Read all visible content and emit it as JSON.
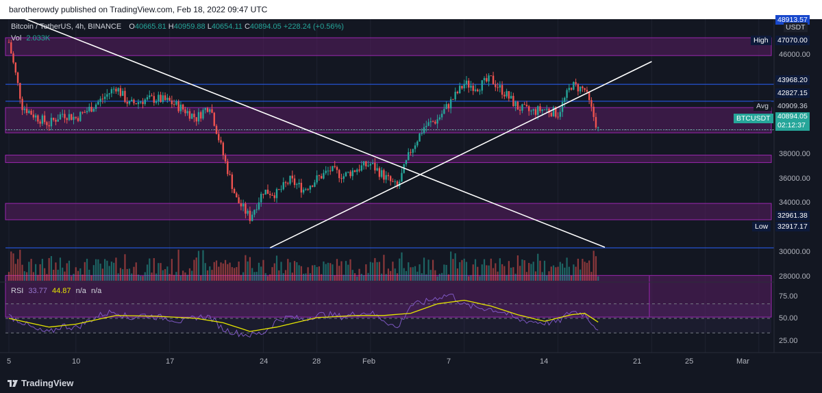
{
  "header": {
    "publisher_text": "barotherowdy published on TradingView.com, Feb 18, 2022 09:47 UTC"
  },
  "footer": {
    "logo_text": "TradingView"
  },
  "legend": {
    "symbol": "Bitcoin / TetherUS, 4h, BINANCE",
    "open_label": "O",
    "open": "40665.81",
    "high_label": "H",
    "high": "40959.88",
    "low_label": "L",
    "low": "40654.11",
    "close_label": "C",
    "close": "40894.05",
    "change": "+228.24 (+0.56%)",
    "vol_label": "Vol",
    "vol": "2.033K",
    "rsi_label": "RSI",
    "rsi_value": "33.77",
    "rsi_ma": "44.87",
    "rsi_na1": "n/a",
    "rsi_na2": "n/a"
  },
  "price_axis": {
    "currency": "USDT",
    "top_cut": "48913.57",
    "ticks": [
      "46000.00",
      "38000.00",
      "36000.00",
      "34000.00",
      "30000.00",
      "28000.00"
    ],
    "labels": {
      "high_tag": "High",
      "high": "47070.00",
      "l1": "43968.20",
      "l2": "42827.15",
      "avg_tag": "Avg",
      "avg": "40909.36",
      "sym_tag": "BTCUSDT",
      "last": "40894.05",
      "countdown": "02:12:37",
      "l3": "32961.38",
      "low_tag": "Low",
      "low": "32917.17"
    }
  },
  "rsi_axis": {
    "ticks": [
      "75.00",
      "50.00",
      "25.00"
    ]
  },
  "time_axis": {
    "ticks": [
      "5",
      "10",
      "17",
      "24",
      "28",
      "Feb",
      "7",
      "14",
      "21",
      "25",
      "Mar"
    ]
  },
  "colors": {
    "background": "#131722",
    "up": "#26a69a",
    "down": "#ef5350",
    "zone_fill": "#5a1e63",
    "zone_border": "#9c27b0",
    "trendline": "#ffffff",
    "rsi_line": "#7e57c2",
    "rsi_ma_line": "#e6e600",
    "blue_level": "#2962ff"
  },
  "chart_data": {
    "type": "candlestick",
    "symbol": "BTCUSDT",
    "interval": "4h",
    "ylim": [
      28000,
      48913.57
    ],
    "rsi_ylim": [
      0,
      100
    ],
    "close_path": [
      [
        5,
        46800
      ],
      [
        6,
        42500
      ],
      [
        7,
        41800
      ],
      [
        8,
        41300
      ],
      [
        9,
        42000
      ],
      [
        10,
        41700
      ],
      [
        11,
        42300
      ],
      [
        12,
        43000
      ],
      [
        13,
        43800
      ],
      [
        14,
        42600
      ],
      [
        15,
        42900
      ],
      [
        16,
        43000
      ],
      [
        17,
        42800
      ],
      [
        18,
        42300
      ],
      [
        19,
        41700
      ],
      [
        20,
        42600
      ],
      [
        21,
        39200
      ],
      [
        22,
        36200
      ],
      [
        23,
        35000
      ],
      [
        24,
        36800
      ],
      [
        25,
        36600
      ],
      [
        26,
        37500
      ],
      [
        27,
        36900
      ],
      [
        28,
        37600
      ],
      [
        29,
        38200
      ],
      [
        30,
        37800
      ],
      [
        31,
        38300
      ],
      [
        32,
        38600
      ],
      [
        33,
        37800
      ],
      [
        34,
        37000
      ],
      [
        35,
        39500
      ],
      [
        36,
        41100
      ],
      [
        37,
        41600
      ],
      [
        38,
        42800
      ],
      [
        39,
        44000
      ],
      [
        40,
        43800
      ],
      [
        41,
        44300
      ],
      [
        42,
        43400
      ],
      [
        43,
        42400
      ],
      [
        44,
        42100
      ],
      [
        45,
        42300
      ],
      [
        46,
        42000
      ],
      [
        47,
        43900
      ],
      [
        48,
        43600
      ],
      [
        49,
        40894.05
      ]
    ],
    "zones": [
      {
        "from": 45900,
        "to": 47100
      },
      {
        "from": 40700,
        "to": 42400
      },
      {
        "from": 38700,
        "to": 39200
      },
      {
        "from": 34850,
        "to": 35950
      },
      {
        "from": 28300,
        "to": 31100
      }
    ],
    "levels": [
      43968.2,
      42827.15,
      40909.36,
      32961.38
    ],
    "trendlines": [
      {
        "from": [
          5,
          48800
        ],
        "to": [
          49.5,
          33000
        ]
      },
      {
        "from": [
          24.5,
          32960
        ],
        "to": [
          53,
          45500
        ]
      }
    ],
    "rsi_series": [
      [
        5,
        53
      ],
      [
        6,
        45
      ],
      [
        7,
        34
      ],
      [
        8,
        30
      ],
      [
        9,
        40
      ],
      [
        10,
        37
      ],
      [
        11,
        47
      ],
      [
        12,
        56
      ],
      [
        13,
        60
      ],
      [
        14,
        50
      ],
      [
        15,
        55
      ],
      [
        16,
        52
      ],
      [
        17,
        50
      ],
      [
        18,
        45
      ],
      [
        19,
        52
      ],
      [
        20,
        52
      ],
      [
        21,
        35
      ],
      [
        22,
        30
      ],
      [
        23,
        27
      ],
      [
        24,
        30
      ],
      [
        25,
        47
      ],
      [
        26,
        52
      ],
      [
        27,
        48
      ],
      [
        28,
        55
      ],
      [
        29,
        55
      ],
      [
        30,
        52
      ],
      [
        31,
        57
      ],
      [
        32,
        58
      ],
      [
        33,
        48
      ],
      [
        34,
        36
      ],
      [
        35,
        68
      ],
      [
        36,
        72
      ],
      [
        37,
        79
      ],
      [
        38,
        83
      ],
      [
        39,
        68
      ],
      [
        40,
        65
      ],
      [
        41,
        63
      ],
      [
        42,
        58
      ],
      [
        43,
        48
      ],
      [
        44,
        46
      ],
      [
        45,
        44
      ],
      [
        46,
        45
      ],
      [
        47,
        60
      ],
      [
        48,
        56
      ],
      [
        49,
        33.77
      ]
    ],
    "rsi_ma_series": [
      [
        5,
        50
      ],
      [
        8,
        38
      ],
      [
        10,
        42
      ],
      [
        13,
        54
      ],
      [
        16,
        53
      ],
      [
        19,
        50
      ],
      [
        21,
        44
      ],
      [
        23,
        32
      ],
      [
        25,
        38
      ],
      [
        28,
        51
      ],
      [
        31,
        54
      ],
      [
        33,
        54
      ],
      [
        35,
        57
      ],
      [
        37,
        70
      ],
      [
        39,
        75
      ],
      [
        41,
        67
      ],
      [
        43,
        55
      ],
      [
        45,
        46
      ],
      [
        47,
        55
      ],
      [
        48,
        57
      ],
      [
        49,
        44.87
      ]
    ]
  }
}
